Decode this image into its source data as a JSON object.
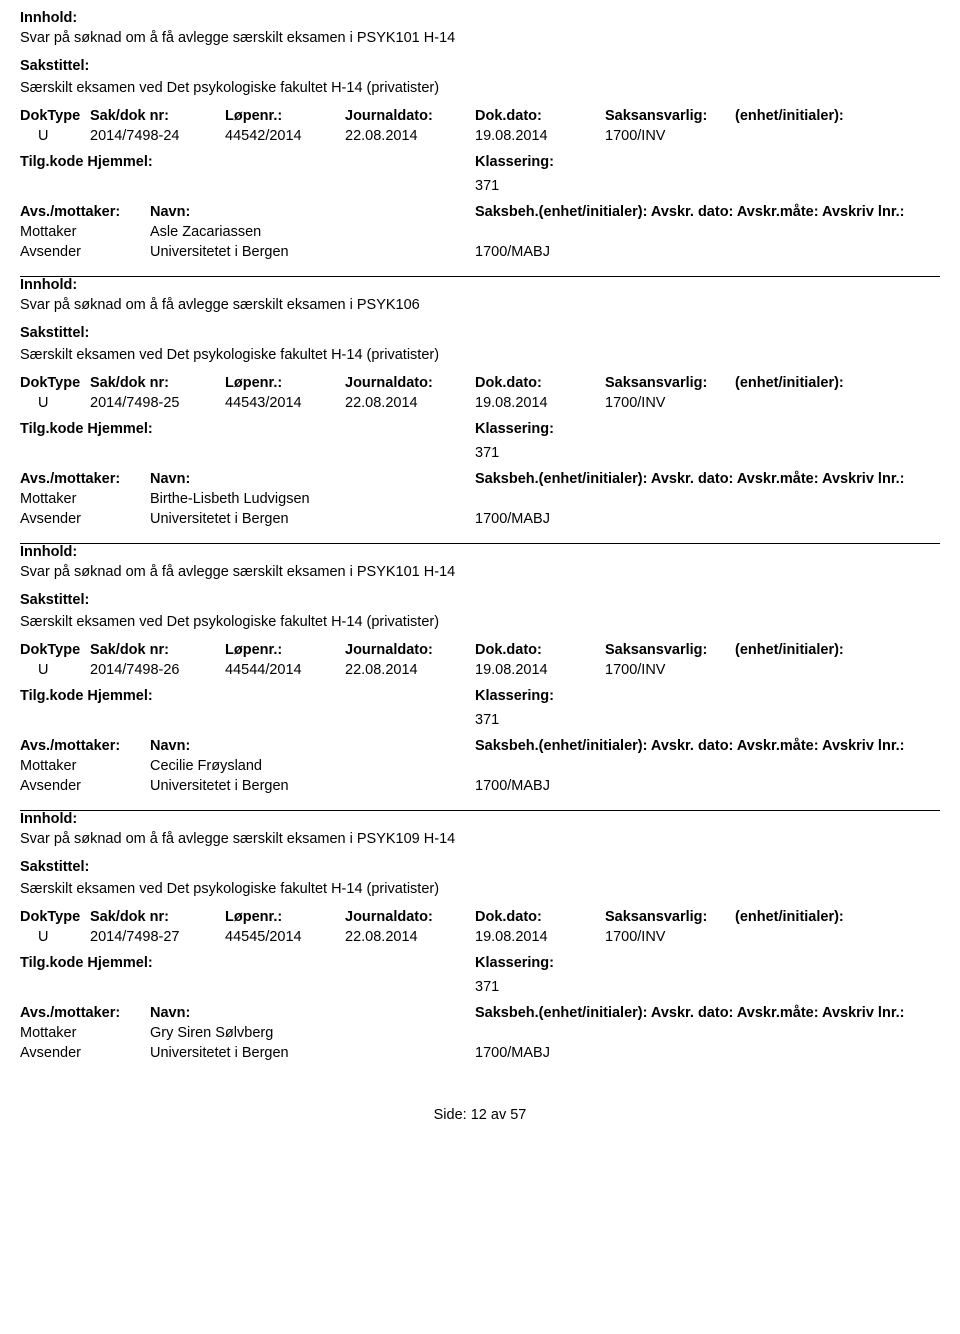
{
  "labels": {
    "innhold": "Innhold:",
    "sakstittel": "Sakstittel:",
    "doktype": "DokType",
    "sakdok": "Sak/dok nr:",
    "lopenr": "Løpenr.:",
    "journaldato": "Journaldato:",
    "dokdato": "Dok.dato:",
    "saksansvarlig": "Saksansvarlig:",
    "enhet": "(enhet/initialer):",
    "tilgkode": "Tilg.kode",
    "hjemmel": "Hjemmel:",
    "klassering": "Klassering:",
    "avs_mottaker": "Avs./mottaker:",
    "navn": "Navn:",
    "saksbeh_line": "Saksbeh.(enhet/initialer): Avskr. dato:  Avskr.måte:  Avskriv lnr.:",
    "mottaker": "Mottaker",
    "avsender": "Avsender"
  },
  "footer": {
    "side": "Side:",
    "page": "12",
    "av": "av",
    "total": "57"
  },
  "records": [
    {
      "innhold": "Svar på søknad om å få avlegge særskilt eksamen i PSYK101 H-14",
      "sakstittel": "Særskilt eksamen ved Det psykologiske fakultet H-14 (privatister)",
      "doktype": "U",
      "sakdok": "2014/7498-24",
      "lopenr": "44542/2014",
      "journaldato": "22.08.2014",
      "dokdato": "19.08.2014",
      "saksansvarlig": "1700/INV",
      "klasseringskode": "371",
      "mottaker_name": "Asle Zacariassen",
      "avsender_name": "Universitetet i Bergen",
      "avsender_code": "1700/MABJ"
    },
    {
      "innhold": "Svar på søknad om å få avlegge særskilt eksamen i PSYK106",
      "sakstittel": "Særskilt eksamen ved Det psykologiske fakultet H-14 (privatister)",
      "doktype": "U",
      "sakdok": "2014/7498-25",
      "lopenr": "44543/2014",
      "journaldato": "22.08.2014",
      "dokdato": "19.08.2014",
      "saksansvarlig": "1700/INV",
      "klasseringskode": "371",
      "mottaker_name": "Birthe-Lisbeth Ludvigsen",
      "avsender_name": "Universitetet i Bergen",
      "avsender_code": "1700/MABJ"
    },
    {
      "innhold": "Svar på søknad om å få avlegge særskilt eksamen i PSYK101 H-14",
      "sakstittel": "Særskilt eksamen ved Det psykologiske fakultet H-14 (privatister)",
      "doktype": "U",
      "sakdok": "2014/7498-26",
      "lopenr": "44544/2014",
      "journaldato": "22.08.2014",
      "dokdato": "19.08.2014",
      "saksansvarlig": "1700/INV",
      "klasseringskode": "371",
      "mottaker_name": "Cecilie Frøysland",
      "avsender_name": "Universitetet i Bergen",
      "avsender_code": "1700/MABJ"
    },
    {
      "innhold": "Svar på søknad om å få avlegge særskilt eksamen i PSYK109 H-14",
      "sakstittel": "Særskilt eksamen ved Det psykologiske fakultet H-14 (privatister)",
      "doktype": "U",
      "sakdok": "2014/7498-27",
      "lopenr": "44545/2014",
      "journaldato": "22.08.2014",
      "dokdato": "19.08.2014",
      "saksansvarlig": "1700/INV",
      "klasseringskode": "371",
      "mottaker_name": "Gry Siren Sølvberg",
      "avsender_name": "Universitetet i Bergen",
      "avsender_code": "1700/MABJ"
    }
  ]
}
